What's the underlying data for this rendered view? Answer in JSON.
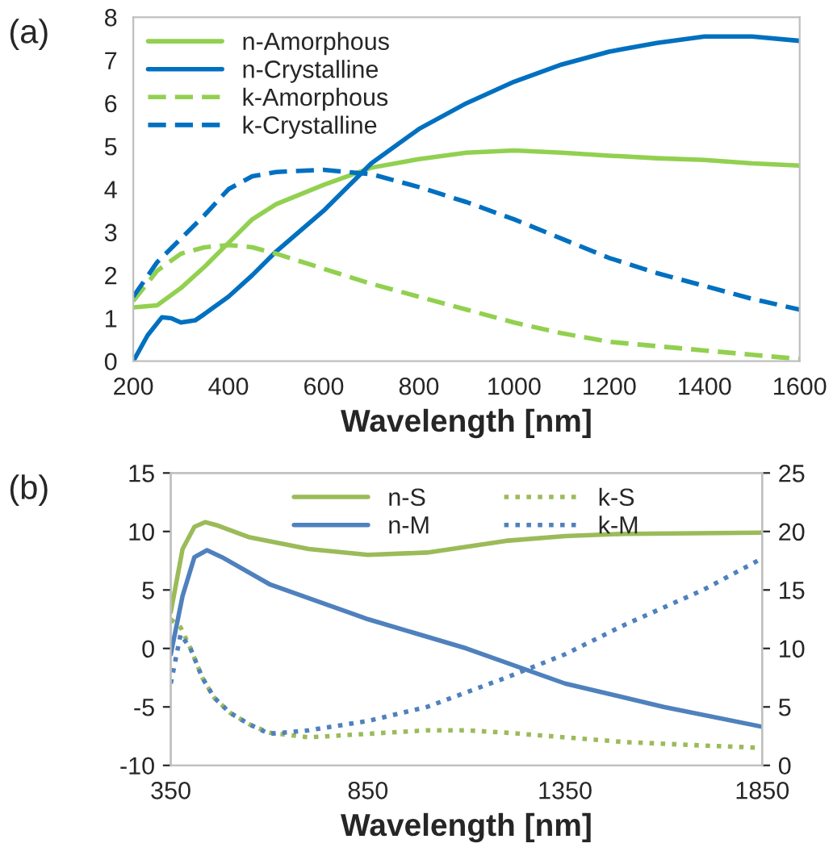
{
  "chart_data": [
    {
      "type": "line",
      "title": "(a)",
      "xlabel": "Wavelength [nm]",
      "xlim": [
        200,
        1600
      ],
      "xticks": [
        200,
        400,
        600,
        800,
        1000,
        1200,
        1400,
        1600
      ],
      "ylim": [
        0,
        8
      ],
      "yticks": [
        0,
        1,
        2,
        3,
        4,
        5,
        6,
        7,
        8
      ],
      "legend": "top left",
      "x": [
        200,
        250,
        300,
        350,
        400,
        450,
        500,
        600,
        700,
        800,
        900,
        1000,
        1100,
        1200,
        1300,
        1400,
        1500,
        1600
      ],
      "series": [
        {
          "name": "n-Amorphous",
          "color": "#92d050",
          "line_style": "solid",
          "values": [
            1.25,
            1.3,
            1.7,
            2.2,
            2.75,
            3.3,
            3.65,
            4.1,
            4.5,
            4.7,
            4.85,
            4.9,
            4.85,
            4.78,
            4.72,
            4.68,
            4.6,
            4.55
          ]
        },
        {
          "name": "n-Crystalline",
          "color": "#0070c0",
          "line_style": "solid",
          "x": [
            200,
            230,
            260,
            280,
            300,
            330,
            350,
            400,
            450,
            500,
            600,
            700,
            800,
            900,
            1000,
            1100,
            1200,
            1300,
            1400,
            1500,
            1600
          ],
          "values": [
            0,
            0.6,
            1.02,
            1.0,
            0.9,
            0.95,
            1.1,
            1.5,
            2.0,
            2.55,
            3.5,
            4.6,
            5.4,
            6.0,
            6.5,
            6.9,
            7.2,
            7.4,
            7.55,
            7.55,
            7.45
          ]
        },
        {
          "name": "k-Amorphous",
          "color": "#92d050",
          "line_style": "dashed",
          "values": [
            1.4,
            2.1,
            2.5,
            2.65,
            2.7,
            2.65,
            2.5,
            2.15,
            1.8,
            1.5,
            1.2,
            0.9,
            0.65,
            0.45,
            0.35,
            0.25,
            0.15,
            0.05
          ]
        },
        {
          "name": "k-Crystalline",
          "color": "#0070c0",
          "line_style": "dashed",
          "values": [
            1.5,
            2.3,
            2.85,
            3.4,
            4.0,
            4.3,
            4.4,
            4.45,
            4.35,
            4.05,
            3.7,
            3.3,
            2.85,
            2.4,
            2.05,
            1.75,
            1.45,
            1.2
          ]
        }
      ]
    },
    {
      "type": "line",
      "title": "(b)",
      "xlabel": "Wavelength [nm]",
      "xlim": [
        350,
        1850
      ],
      "xticks": [
        350,
        850,
        1350,
        1850
      ],
      "ylim": [
        -10,
        15
      ],
      "yticks": [
        -10,
        -5,
        0,
        5,
        10,
        15
      ],
      "y2lim": [
        0,
        25
      ],
      "y2ticks": [
        0,
        5,
        10,
        15,
        20,
        25
      ],
      "legend": "top",
      "series": [
        {
          "name": "n-S",
          "color": "#9bbb59",
          "line_style": "solid",
          "x": [
            350,
            380,
            410,
            437,
            470,
            550,
            700,
            850,
            1000,
            1200,
            1350,
            1500,
            1850
          ],
          "values": [
            3.1,
            8.5,
            10.4,
            10.8,
            10.5,
            9.5,
            8.5,
            8.0,
            8.2,
            9.2,
            9.6,
            9.8,
            9.9
          ]
        },
        {
          "name": "n-M",
          "color": "#4f81bd",
          "line_style": "solid",
          "x": [
            350,
            380,
            410,
            442,
            480,
            600,
            850,
            1000,
            1100,
            1350,
            1600,
            1850
          ],
          "values": [
            -0.5,
            4.5,
            7.8,
            8.4,
            7.8,
            5.5,
            2.5,
            1,
            0,
            -3,
            -5,
            -6.7
          ]
        },
        {
          "name": "k-S",
          "color": "#9bbb59",
          "line_style": "dotted",
          "axis": "y2",
          "x": [
            350,
            375,
            400,
            430,
            460,
            500,
            550,
            600,
            700,
            850,
            1000,
            1100,
            1200,
            1350,
            1500,
            1700,
            1850
          ],
          "values": [
            12.5,
            11.8,
            10,
            7.5,
            5.8,
            4.5,
            3.5,
            2.8,
            2.4,
            2.7,
            3.0,
            3.0,
            2.8,
            2.4,
            2.0,
            1.7,
            1.5
          ]
        },
        {
          "name": "k-M",
          "color": "#4f81bd",
          "line_style": "dotted",
          "axis": "y2",
          "x": [
            350,
            375,
            400,
            430,
            460,
            500,
            550,
            600,
            700,
            850,
            1000,
            1200,
            1350,
            1500,
            1700,
            1850
          ],
          "values": [
            7,
            11.2,
            10,
            7.5,
            5.8,
            4.5,
            3.5,
            2.7,
            3.0,
            3.8,
            5,
            7.5,
            9.5,
            12,
            15,
            17.7
          ]
        }
      ]
    }
  ]
}
